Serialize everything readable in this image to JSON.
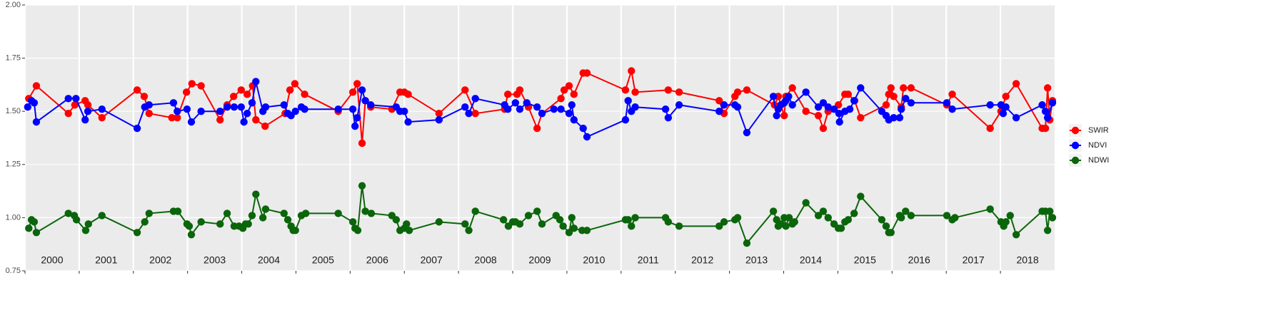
{
  "chart_data": {
    "type": "line",
    "xlim": [
      2000,
      2019
    ],
    "xticks": [
      2000,
      2001,
      2002,
      2003,
      2004,
      2005,
      2006,
      2007,
      2008,
      2009,
      2010,
      2011,
      2012,
      2013,
      2014,
      2015,
      2016,
      2017,
      2018
    ],
    "ylim": [
      0.75,
      2
    ],
    "yticks": [
      {
        "value": 0.75,
        "label": "0.75"
      },
      {
        "value": 1,
        "label": "1.00"
      },
      {
        "value": 1.25,
        "label": "1.25"
      },
      {
        "value": 1.5,
        "label": "1.50"
      },
      {
        "value": 1.75,
        "label": "1.75"
      },
      {
        "value": 2,
        "label": "2.00"
      }
    ],
    "grid": true,
    "legend": "right",
    "series": [
      {
        "name": "SWIR",
        "color": "#ff0000",
        "x": [
          2000.07,
          2000.21,
          2000.8,
          2000.92,
          2001.11,
          2001.16,
          2001.42,
          2002.07,
          2002.2,
          2002.29,
          2002.71,
          2002.81,
          2002.98,
          2003.08,
          2003.25,
          2003.6,
          2003.73,
          2003.85,
          2003.99,
          2004.1,
          2004.2,
          2004.26,
          2004.43,
          2004.8,
          2004.89,
          2004.98,
          2005.16,
          2005.78,
          2006.05,
          2006.13,
          2006.22,
          2006.28,
          2006.38,
          2006.77,
          2006.92,
          2007.0,
          2007.07,
          2007.64,
          2008.12,
          2008.31,
          2008.85,
          2008.91,
          2009.08,
          2009.13,
          2009.29,
          2009.45,
          2009.54,
          2009.89,
          2009.95,
          2010.04,
          2010.13,
          2010.3,
          2010.37,
          2011.08,
          2011.19,
          2011.26,
          2011.87,
          2012.07,
          2012.81,
          2012.9,
          2013.1,
          2013.15,
          2013.32,
          2013.83,
          2013.9,
          2014.01,
          2014.04,
          2014.16,
          2014.41,
          2014.64,
          2014.73,
          2014.82,
          2015.01,
          2015.13,
          2015.19,
          2015.31,
          2015.42,
          2015.89,
          2015.94,
          2015.98,
          2016.03,
          2016.17,
          2016.21,
          2016.35,
          2017.01,
          2017.11,
          2017.81,
          2018.01,
          2018.1,
          2018.29,
          2018.77,
          2018.83,
          2018.87,
          2018.91,
          2018.96
        ],
        "values": [
          1.56,
          1.62,
          1.49,
          1.53,
          1.55,
          1.53,
          1.47,
          1.6,
          1.57,
          1.49,
          1.47,
          1.47,
          1.59,
          1.63,
          1.62,
          1.46,
          1.53,
          1.57,
          1.6,
          1.58,
          1.62,
          1.46,
          1.43,
          1.49,
          1.6,
          1.63,
          1.58,
          1.5,
          1.59,
          1.63,
          1.35,
          1.55,
          1.52,
          1.51,
          1.59,
          1.59,
          1.58,
          1.49,
          1.6,
          1.49,
          1.51,
          1.58,
          1.58,
          1.6,
          1.52,
          1.42,
          1.49,
          1.56,
          1.6,
          1.62,
          1.58,
          1.68,
          1.68,
          1.6,
          1.69,
          1.59,
          1.6,
          1.59,
          1.55,
          1.49,
          1.57,
          1.59,
          1.6,
          1.53,
          1.57,
          1.48,
          1.57,
          1.61,
          1.5,
          1.48,
          1.42,
          1.5,
          1.53,
          1.58,
          1.58,
          1.55,
          1.47,
          1.53,
          1.58,
          1.61,
          1.57,
          1.52,
          1.61,
          1.61,
          1.53,
          1.58,
          1.42,
          1.5,
          1.57,
          1.63,
          1.42,
          1.42,
          1.61,
          1.46,
          1.55
        ]
      },
      {
        "name": "NDVI",
        "color": "#0000ff",
        "x": [
          2000.05,
          2000.12,
          2000.17,
          2000.21,
          2000.8,
          2000.94,
          2001.11,
          2001.16,
          2001.42,
          2002.07,
          2002.21,
          2002.29,
          2002.74,
          2002.81,
          2002.99,
          2003.07,
          2003.25,
          2003.6,
          2003.73,
          2003.86,
          2003.99,
          2004.04,
          2004.1,
          2004.19,
          2004.26,
          2004.39,
          2004.44,
          2004.78,
          2004.85,
          2004.91,
          2004.99,
          2005.1,
          2005.16,
          2005.78,
          2006.05,
          2006.09,
          2006.13,
          2006.22,
          2006.28,
          2006.38,
          2006.85,
          2006.92,
          2007.0,
          2007.07,
          2007.64,
          2008.12,
          2008.19,
          2008.31,
          2008.85,
          2008.91,
          2009.05,
          2009.13,
          2009.26,
          2009.45,
          2009.54,
          2009.76,
          2009.89,
          2010.04,
          2010.09,
          2010.13,
          2010.3,
          2010.37,
          2011.08,
          2011.13,
          2011.19,
          2011.26,
          2011.82,
          2011.87,
          2012.07,
          2012.81,
          2012.9,
          2013.1,
          2013.15,
          2013.32,
          2013.81,
          2013.87,
          2013.9,
          2013.95,
          2014.01,
          2014.04,
          2014.09,
          2014.16,
          2014.41,
          2014.64,
          2014.73,
          2014.82,
          2014.93,
          2015.02,
          2015.03,
          2015.13,
          2015.22,
          2015.3,
          2015.42,
          2015.81,
          2015.89,
          2015.94,
          2016.03,
          2016.14,
          2016.17,
          2016.25,
          2016.35,
          2017.01,
          2017.11,
          2017.81,
          2018.01,
          2018.05,
          2018.1,
          2018.29,
          2018.77,
          2018.83,
          2018.87,
          2018.96
        ],
        "values": [
          1.52,
          1.55,
          1.54,
          1.45,
          1.56,
          1.56,
          1.46,
          1.5,
          1.51,
          1.42,
          1.52,
          1.53,
          1.54,
          1.5,
          1.51,
          1.45,
          1.5,
          1.5,
          1.52,
          1.52,
          1.52,
          1.45,
          1.49,
          1.54,
          1.64,
          1.5,
          1.52,
          1.53,
          1.49,
          1.48,
          1.5,
          1.52,
          1.51,
          1.51,
          1.51,
          1.43,
          1.47,
          1.6,
          1.55,
          1.53,
          1.52,
          1.5,
          1.5,
          1.45,
          1.46,
          1.52,
          1.49,
          1.56,
          1.53,
          1.51,
          1.54,
          1.51,
          1.54,
          1.52,
          1.49,
          1.51,
          1.51,
          1.49,
          1.53,
          1.46,
          1.42,
          1.38,
          1.46,
          1.55,
          1.5,
          1.52,
          1.51,
          1.47,
          1.53,
          1.5,
          1.53,
          1.53,
          1.52,
          1.4,
          1.57,
          1.48,
          1.51,
          1.53,
          1.54,
          1.55,
          1.57,
          1.53,
          1.59,
          1.52,
          1.54,
          1.52,
          1.51,
          1.49,
          1.45,
          1.5,
          1.51,
          1.55,
          1.61,
          1.5,
          1.48,
          1.46,
          1.47,
          1.47,
          1.51,
          1.56,
          1.54,
          1.54,
          1.51,
          1.53,
          1.53,
          1.49,
          1.52,
          1.47,
          1.53,
          1.5,
          1.47,
          1.54
        ]
      },
      {
        "name": "NDWI",
        "color": "#0b650b",
        "x": [
          2000.07,
          2000.12,
          2000.17,
          2000.21,
          2000.8,
          2000.91,
          2000.95,
          2001.12,
          2001.17,
          2001.42,
          2002.07,
          2002.21,
          2002.29,
          2002.74,
          2002.82,
          2002.99,
          2003.03,
          2003.07,
          2003.25,
          2003.6,
          2003.73,
          2003.86,
          2003.95,
          2004.02,
          2004.07,
          2004.12,
          2004.19,
          2004.26,
          2004.39,
          2004.44,
          2004.78,
          2004.85,
          2004.91,
          2004.95,
          2004.99,
          2005.1,
          2005.18,
          2005.78,
          2006.05,
          2006.09,
          2006.14,
          2006.22,
          2006.28,
          2006.39,
          2006.77,
          2006.85,
          2006.92,
          2007.0,
          2007.04,
          2007.09,
          2007.64,
          2008.12,
          2008.19,
          2008.31,
          2008.83,
          2008.92,
          2009.0,
          2009.05,
          2009.13,
          2009.29,
          2009.45,
          2009.54,
          2009.8,
          2009.87,
          2009.93,
          2010.04,
          2010.09,
          2010.13,
          2010.28,
          2010.37,
          2011.08,
          2011.13,
          2011.19,
          2011.26,
          2011.82,
          2011.87,
          2012.07,
          2012.81,
          2012.9,
          2013.1,
          2013.15,
          2013.32,
          2013.81,
          2013.87,
          2013.9,
          2013.95,
          2014.01,
          2014.04,
          2014.1,
          2014.16,
          2014.2,
          2014.41,
          2014.64,
          2014.73,
          2014.82,
          2014.93,
          2015.01,
          2015.06,
          2015.13,
          2015.19,
          2015.3,
          2015.42,
          2015.81,
          2015.89,
          2015.94,
          2015.98,
          2016.14,
          2016.17,
          2016.25,
          2016.35,
          2017.01,
          2017.11,
          2017.16,
          2017.81,
          2018.01,
          2018.06,
          2018.1,
          2018.18,
          2018.29,
          2018.77,
          2018.83,
          2018.87,
          2018.91,
          2018.96
        ],
        "values": [
          0.95,
          0.99,
          0.98,
          0.93,
          1.02,
          1.01,
          0.99,
          0.94,
          0.97,
          1.01,
          0.93,
          0.98,
          1.02,
          1.03,
          1.03,
          0.97,
          0.96,
          0.92,
          0.98,
          0.97,
          1.02,
          0.96,
          0.96,
          0.95,
          0.97,
          0.97,
          1.01,
          1.11,
          1.0,
          1.04,
          1.02,
          0.99,
          0.96,
          0.94,
          0.94,
          1.01,
          1.02,
          1.02,
          0.98,
          0.95,
          0.94,
          1.15,
          1.03,
          1.02,
          1.01,
          0.99,
          0.94,
          0.95,
          0.97,
          0.94,
          0.98,
          0.97,
          0.94,
          1.03,
          0.99,
          0.96,
          0.98,
          0.98,
          0.97,
          1.01,
          1.03,
          0.97,
          1.01,
          0.99,
          0.96,
          0.93,
          1.0,
          0.95,
          0.94,
          0.94,
          0.99,
          0.99,
          0.96,
          1.0,
          1.0,
          0.98,
          0.96,
          0.96,
          0.98,
          0.99,
          1.0,
          0.88,
          1.03,
          0.99,
          0.96,
          0.97,
          1.0,
          0.96,
          1.0,
          0.97,
          0.98,
          1.07,
          1.01,
          1.03,
          1.0,
          0.97,
          0.95,
          0.95,
          0.98,
          0.99,
          1.02,
          1.1,
          0.99,
          0.96,
          0.93,
          0.93,
          1.01,
          1.0,
          1.03,
          1.01,
          1.01,
          0.99,
          1.0,
          1.04,
          0.98,
          0.96,
          0.98,
          1.01,
          0.92,
          1.03,
          1.03,
          0.94,
          1.03,
          1.0
        ]
      }
    ]
  }
}
